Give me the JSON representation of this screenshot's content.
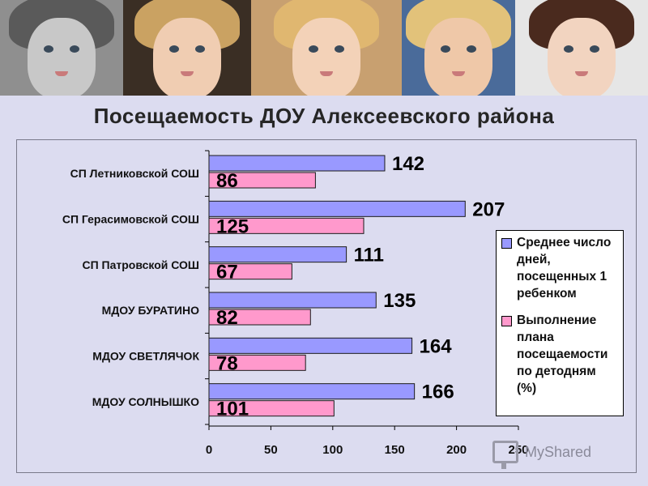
{
  "title": "Посещаемость ДОУ Алексеевского района",
  "photos": [
    {
      "name": "photo-child-1",
      "hair": "#5a5a5a",
      "skin": "#c8c8c8",
      "bg": "#8f8f8f"
    },
    {
      "name": "photo-child-2",
      "hair": "#caa262",
      "skin": "#f0cdb2",
      "bg": "#3a2e24"
    },
    {
      "name": "photo-child-3",
      "hair": "#e0b770",
      "skin": "#f3d2b8",
      "bg": "#c8a070"
    },
    {
      "name": "photo-child-4",
      "hair": "#e2c27a",
      "skin": "#efc8a8",
      "bg": "#4a6b9a"
    },
    {
      "name": "photo-child-5",
      "hair": "#4a2a1e",
      "skin": "#f2d4c0",
      "bg": "#e6e6e6"
    }
  ],
  "chart_data": {
    "type": "bar",
    "orientation": "horizontal",
    "categories": [
      "СП Летниковской СОШ",
      "СП Герасимовской СОШ",
      "СП Патровской СОШ",
      "МДОУ  БУРАТИНО",
      "МДОУ  СВЕТЛЯЧОК",
      "МДОУ  СОЛНЫШКО"
    ],
    "series": [
      {
        "name": "Среднее число дней, посещенных 1 ребенком",
        "color": "#9999ff",
        "values": [
          142,
          207,
          111,
          135,
          164,
          166
        ]
      },
      {
        "name": "Выполнение плана посещаемости по детодням (%)",
        "color": "#ff99cc",
        "values": [
          86,
          125,
          67,
          82,
          78,
          101
        ]
      }
    ],
    "xlim": [
      0,
      250
    ],
    "xticks": [
      0,
      50,
      100,
      150,
      200,
      250
    ],
    "data_labels": true,
    "legend_position": "right",
    "grid": false
  },
  "watermark": {
    "text": "MyShared"
  }
}
